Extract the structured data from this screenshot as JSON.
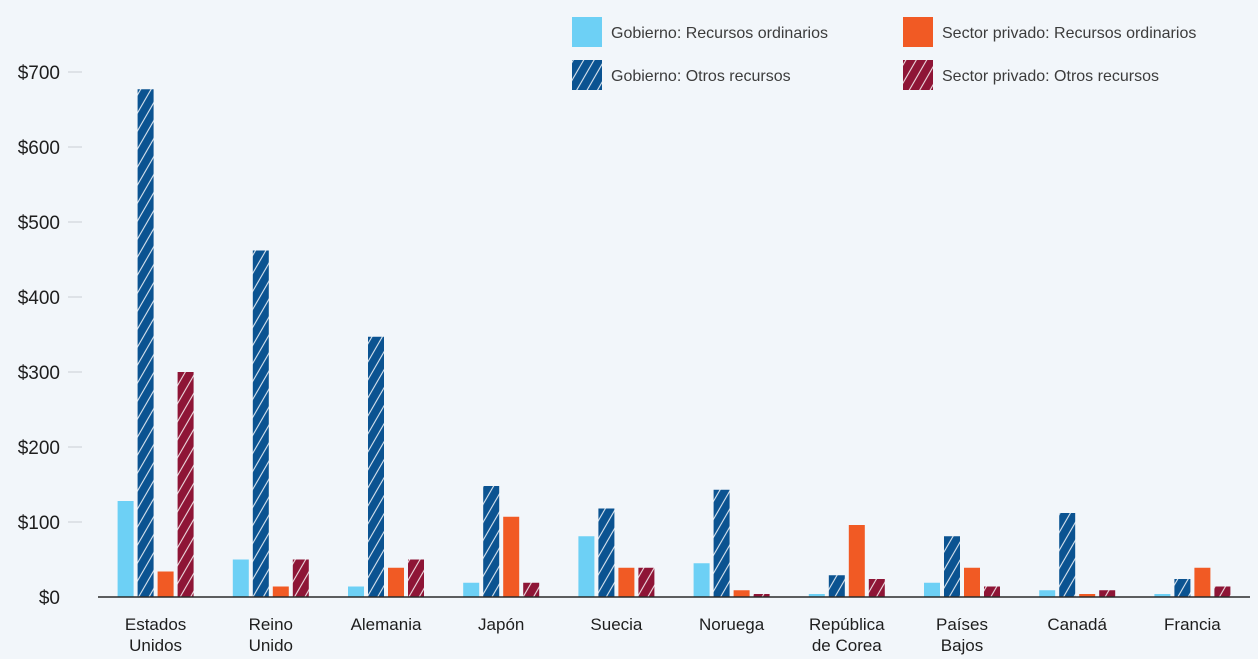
{
  "chart_data": {
    "type": "bar",
    "categories": [
      [
        "Estados",
        "Unidos"
      ],
      [
        "Reino",
        "Unido"
      ],
      [
        "Alemania"
      ],
      [
        "Japón"
      ],
      [
        "Suecia"
      ],
      [
        "Noruega"
      ],
      [
        "República",
        "de Corea"
      ],
      [
        "Países",
        "Bajos"
      ],
      [
        "Canadá"
      ],
      [
        "Francia"
      ]
    ],
    "series": [
      {
        "name": "Gobierno: Recursos ordinarios",
        "color": "#6dd0f5",
        "pattern": "solid",
        "values": [
          128,
          50,
          14,
          19,
          81,
          45,
          4,
          19,
          9,
          4
        ]
      },
      {
        "name": "Gobierno: Otros recursos",
        "color": "#0b5391",
        "pattern": "hatched",
        "values": [
          677,
          462,
          347,
          148,
          118,
          143,
          29,
          81,
          112,
          24
        ]
      },
      {
        "name": "Sector privado: Recursos ordinarios",
        "color": "#f15a24",
        "pattern": "solid",
        "values": [
          34,
          14,
          39,
          107,
          39,
          9,
          96,
          39,
          4,
          39
        ]
      },
      {
        "name": "Sector privado: Otros recursos",
        "color": "#8e1536",
        "pattern": "hatched",
        "values": [
          300,
          50,
          50,
          19,
          39,
          4,
          24,
          14,
          9,
          14
        ]
      }
    ],
    "y_ticks": [
      "$0",
      "$100",
      "$200",
      "$300",
      "$400",
      "$500",
      "$600",
      "$700"
    ],
    "ylim": [
      0,
      700
    ],
    "legend_position": "top-right",
    "grid": false
  }
}
